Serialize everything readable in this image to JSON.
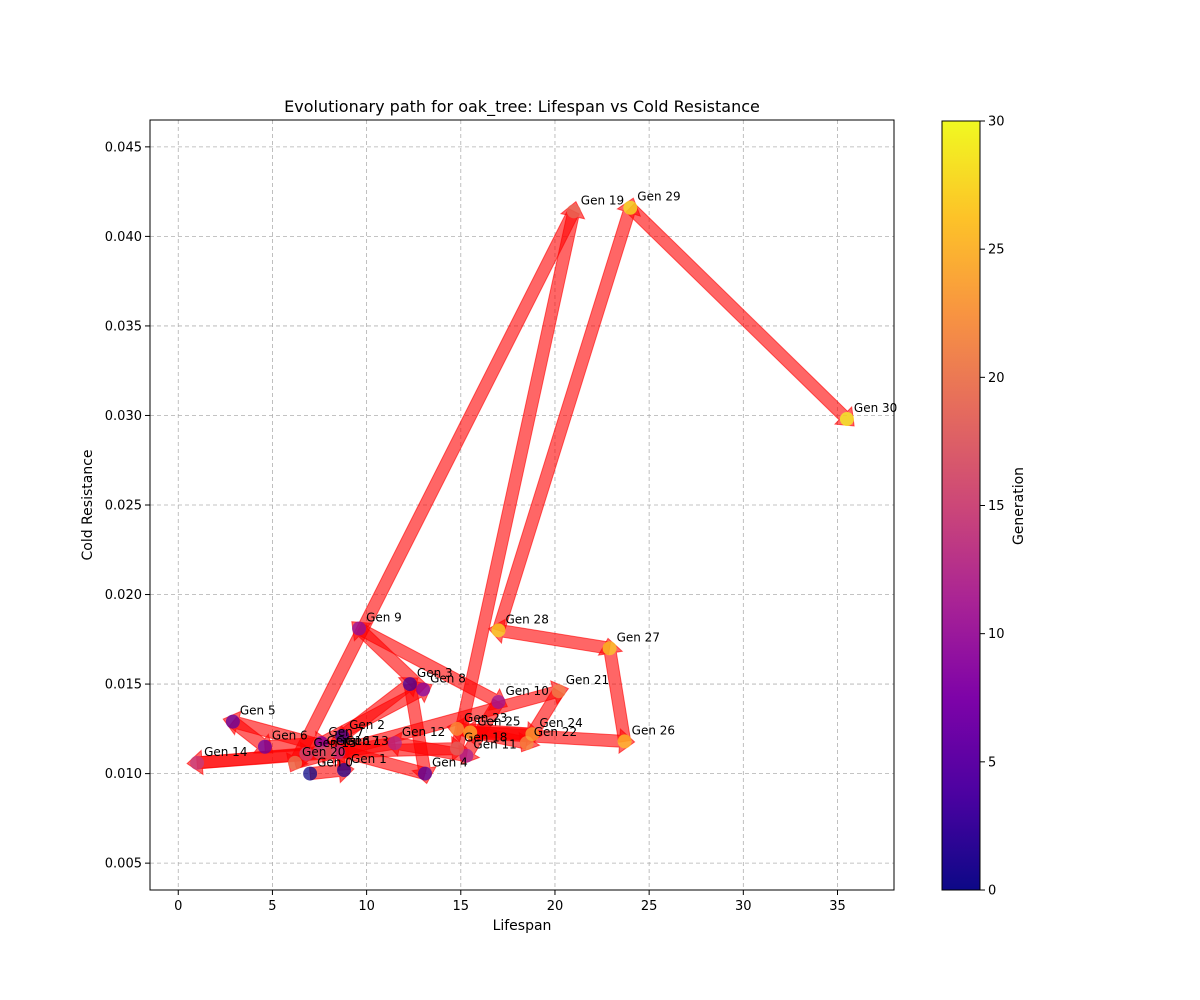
{
  "chart_data": {
    "type": "scatter",
    "title": "Evolutionary path for oak_tree: Lifespan vs Cold Resistance",
    "xlabel": "Lifespan",
    "ylabel": "Cold Resistance",
    "xlim": [
      -1.5,
      38
    ],
    "ylim": [
      0.0035,
      0.0465
    ],
    "xticks": [
      0,
      5,
      10,
      15,
      20,
      25,
      30,
      35
    ],
    "yticks": [
      0.005,
      0.01,
      0.015,
      0.02,
      0.025,
      0.03,
      0.035,
      0.04,
      0.045
    ],
    "ytick_labels": [
      "0.005",
      "0.010",
      "0.015",
      "0.020",
      "0.025",
      "0.030",
      "0.035",
      "0.040",
      "0.045"
    ],
    "grid": true,
    "arrow_color": "#ff0000",
    "colorbar": {
      "label": "Generation",
      "min": 0,
      "max": 30,
      "ticks": [
        0,
        5,
        10,
        15,
        20,
        25,
        30
      ],
      "colormap": "plasma"
    },
    "points": [
      {
        "label": "Gen 0",
        "generation": 0,
        "x": 7.0,
        "y": 0.01
      },
      {
        "label": "Gen 1",
        "generation": 1,
        "x": 8.8,
        "y": 0.0102
      },
      {
        "label": "Gen 2",
        "generation": 2,
        "x": 8.7,
        "y": 0.0121
      },
      {
        "label": "Gen 3",
        "generation": 3,
        "x": 12.3,
        "y": 0.015
      },
      {
        "label": "Gen 4",
        "generation": 4,
        "x": 13.1,
        "y": 0.01
      },
      {
        "label": "Gen 5",
        "generation": 5,
        "x": 2.9,
        "y": 0.0129
      },
      {
        "label": "Gen 6",
        "generation": 6,
        "x": 4.6,
        "y": 0.0115
      },
      {
        "label": "Gen 7",
        "generation": 7,
        "x": 7.6,
        "y": 0.0117
      },
      {
        "label": "Gen 8",
        "generation": 8,
        "x": 13.0,
        "y": 0.0147
      },
      {
        "label": "Gen 9",
        "generation": 9,
        "x": 9.6,
        "y": 0.0181
      },
      {
        "label": "Gen 10",
        "generation": 10,
        "x": 17.0,
        "y": 0.014
      },
      {
        "label": "Gen 11",
        "generation": 11,
        "x": 15.3,
        "y": 0.011
      },
      {
        "label": "Gen 12",
        "generation": 12,
        "x": 11.5,
        "y": 0.0117
      },
      {
        "label": "Gen 13",
        "generation": 13,
        "x": 8.5,
        "y": 0.0112
      },
      {
        "label": "Gen 14",
        "generation": 14,
        "x": 1.0,
        "y": 0.0106
      },
      {
        "label": "Gen 15",
        "generation": 15,
        "x": 6.8,
        "y": 0.0111
      },
      {
        "label": "Gen 16",
        "generation": 16,
        "x": 7.5,
        "y": 0.0112
      },
      {
        "label": "Gen 17",
        "generation": 17,
        "x": 8.0,
        "y": 0.0112
      },
      {
        "label": "Gen 18",
        "generation": 18,
        "x": 14.8,
        "y": 0.0114
      },
      {
        "label": "Gen 19",
        "generation": 19,
        "x": 21.0,
        "y": 0.0414
      },
      {
        "label": "Gen 20",
        "generation": 20,
        "x": 6.2,
        "y": 0.0106
      },
      {
        "label": "Gen 21",
        "generation": 21,
        "x": 20.2,
        "y": 0.0146
      },
      {
        "label": "Gen 22",
        "generation": 22,
        "x": 18.5,
        "y": 0.0117
      },
      {
        "label": "Gen 23",
        "generation": 23,
        "x": 14.8,
        "y": 0.0125
      },
      {
        "label": "Gen 24",
        "generation": 24,
        "x": 18.8,
        "y": 0.0122
      },
      {
        "label": "Gen 25",
        "generation": 25,
        "x": 15.5,
        "y": 0.0123
      },
      {
        "label": "Gen 26",
        "generation": 26,
        "x": 23.7,
        "y": 0.0118
      },
      {
        "label": "Gen 27",
        "generation": 27,
        "x": 22.9,
        "y": 0.017
      },
      {
        "label": "Gen 28",
        "generation": 28,
        "x": 17.0,
        "y": 0.018
      },
      {
        "label": "Gen 29",
        "generation": 29,
        "x": 24.0,
        "y": 0.0416
      },
      {
        "label": "Gen 30",
        "generation": 30,
        "x": 35.5,
        "y": 0.0298
      }
    ]
  }
}
